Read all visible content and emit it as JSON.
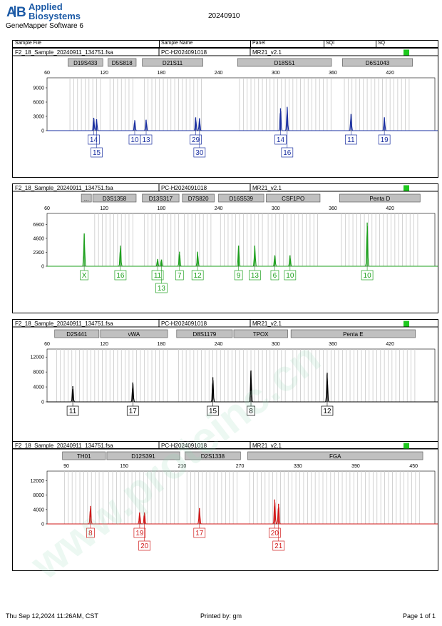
{
  "header": {
    "brand_line1": "Applied",
    "brand_line2": "Biosystems",
    "software": "GeneMapper Software 6",
    "run_date": "20240910"
  },
  "columns": [
    "Sample File",
    "Sample Name",
    "Panel",
    "SQI",
    "SQ"
  ],
  "footer": {
    "printed_at": "Thu Sep 12,2024 11:26AM, CST",
    "printed_by": "Printed by: gm",
    "page": "Page 1 of 1"
  },
  "watermark": "www.proteinc.cn",
  "colors": {
    "blue": "#1a2fa0",
    "green": "#1ea01e",
    "black": "#000000",
    "red": "#d01818",
    "status": "#1ec81e"
  },
  "chart_data": [
    {
      "type": "line",
      "sample_file": "F2_18_Sample_20240911_134751.fsa",
      "sample_name": "PC-H2024091018",
      "panel": "MR21_v2.1",
      "dye": "blue",
      "x_ticks": [
        60,
        120,
        180,
        240,
        300,
        360,
        420
      ],
      "xlim": [
        60,
        470
      ],
      "y_ticks": [
        0,
        3000,
        6000,
        9000
      ],
      "ylim": [
        0,
        10200
      ],
      "markers": [
        {
          "name": "D19S433",
          "start": 82,
          "end": 120
        },
        {
          "name": "D5S818",
          "start": 124,
          "end": 155
        },
        {
          "name": "D21S11",
          "start": 160,
          "end": 225
        },
        {
          "name": "D18S51",
          "start": 260,
          "end": 360
        },
        {
          "name": "D6S1043",
          "start": 370,
          "end": 445
        }
      ],
      "peaks": [
        {
          "x": 109,
          "y": 2700
        },
        {
          "x": 112,
          "y": 2400
        },
        {
          "x": 152,
          "y": 2200
        },
        {
          "x": 164,
          "y": 2300
        },
        {
          "x": 216,
          "y": 2800
        },
        {
          "x": 220,
          "y": 2600
        },
        {
          "x": 305,
          "y": 4700
        },
        {
          "x": 312,
          "y": 5000
        },
        {
          "x": 379,
          "y": 3500
        },
        {
          "x": 414,
          "y": 2800
        }
      ],
      "alleles": [
        {
          "x": 109,
          "label": "14",
          "row": 1
        },
        {
          "x": 112,
          "label": "15",
          "row": 2
        },
        {
          "x": 152,
          "label": "10",
          "row": 1
        },
        {
          "x": 164,
          "label": "13",
          "row": 1
        },
        {
          "x": 216,
          "label": "29",
          "row": 1
        },
        {
          "x": 220,
          "label": "30",
          "row": 2
        },
        {
          "x": 305,
          "label": "14",
          "row": 1
        },
        {
          "x": 312,
          "label": "16",
          "row": 2
        },
        {
          "x": 379,
          "label": "11",
          "row": 1
        },
        {
          "x": 414,
          "label": "19",
          "row": 1
        }
      ]
    },
    {
      "type": "line",
      "sample_file": "F2_18_Sample_20240911_134751.fsa",
      "sample_name": "PC-H2024091018",
      "panel": "MR21_v2.1",
      "dye": "green",
      "x_ticks": [
        60,
        120,
        180,
        240,
        300,
        360,
        420
      ],
      "xlim": [
        60,
        470
      ],
      "y_ticks": [
        0,
        2300,
        4600,
        6900
      ],
      "ylim": [
        0,
        8000
      ],
      "markers": [
        {
          "name": "...",
          "start": 96,
          "end": 108
        },
        {
          "name": "D3S1358",
          "start": 108,
          "end": 155
        },
        {
          "name": "D13S317",
          "start": 160,
          "end": 200
        },
        {
          "name": "D7S820",
          "start": 202,
          "end": 237
        },
        {
          "name": "D16S539",
          "start": 240,
          "end": 289
        },
        {
          "name": "CSF1PO",
          "start": 290,
          "end": 348
        },
        {
          "name": "Penta D",
          "start": 367,
          "end": 453
        }
      ],
      "peaks": [
        {
          "x": 99,
          "y": 5400
        },
        {
          "x": 137,
          "y": 3400
        },
        {
          "x": 176,
          "y": 1200
        },
        {
          "x": 180,
          "y": 1100
        },
        {
          "x": 199,
          "y": 2400
        },
        {
          "x": 218,
          "y": 2400
        },
        {
          "x": 261,
          "y": 3400
        },
        {
          "x": 278,
          "y": 3400
        },
        {
          "x": 299,
          "y": 1800
        },
        {
          "x": 315,
          "y": 1800
        },
        {
          "x": 396,
          "y": 7200
        }
      ],
      "alleles": [
        {
          "x": 99,
          "label": "X",
          "row": 1
        },
        {
          "x": 137,
          "label": "16",
          "row": 1
        },
        {
          "x": 176,
          "label": "11",
          "row": 1
        },
        {
          "x": 180,
          "label": "13",
          "row": 2
        },
        {
          "x": 199,
          "label": "7",
          "row": 1
        },
        {
          "x": 218,
          "label": "12",
          "row": 1
        },
        {
          "x": 261,
          "label": "9",
          "row": 1
        },
        {
          "x": 278,
          "label": "13",
          "row": 1
        },
        {
          "x": 299,
          "label": "6",
          "row": 1
        },
        {
          "x": 315,
          "label": "10",
          "row": 1
        },
        {
          "x": 396,
          "label": "10",
          "row": 1
        }
      ]
    },
    {
      "type": "line",
      "sample_file": "F2_18_Sample_20240911_134751.fsa",
      "sample_name": "PC-H2024091018",
      "panel": "MR21_v2.1",
      "dye": "black",
      "x_ticks": [
        60,
        120,
        180,
        240,
        300,
        360,
        420
      ],
      "xlim": [
        60,
        470
      ],
      "y_ticks": [
        0,
        4000,
        8000,
        12000
      ],
      "ylim": [
        0,
        13000
      ],
      "markers": [
        {
          "name": "D2S441",
          "start": 68,
          "end": 116
        },
        {
          "name": "vWA",
          "start": 116,
          "end": 188
        },
        {
          "name": "D8S1179",
          "start": 196,
          "end": 256
        },
        {
          "name": "TPOX",
          "start": 256,
          "end": 314
        },
        {
          "name": "Penta E",
          "start": 316,
          "end": 448
        }
      ],
      "peaks": [
        {
          "x": 87,
          "y": 4200
        },
        {
          "x": 150,
          "y": 5200
        },
        {
          "x": 234,
          "y": 6600
        },
        {
          "x": 274,
          "y": 8400
        },
        {
          "x": 354,
          "y": 7800
        }
      ],
      "alleles": [
        {
          "x": 87,
          "label": "11",
          "row": 1
        },
        {
          "x": 150,
          "label": "17",
          "row": 1
        },
        {
          "x": 234,
          "label": "15",
          "row": 1
        },
        {
          "x": 274,
          "label": "8",
          "row": 1
        },
        {
          "x": 354,
          "label": "12",
          "row": 1
        }
      ]
    },
    {
      "type": "line",
      "sample_file": "F2_18_Sample_20240911_134751.fsa",
      "sample_name": "PC-H2024091018",
      "panel": "MR21_v2.1",
      "dye": "red",
      "x_ticks": [
        90,
        150,
        210,
        270,
        330,
        390,
        450
      ],
      "xlim": [
        70,
        475
      ],
      "y_ticks": [
        0,
        4000,
        8000,
        12000
      ],
      "ylim": [
        0,
        13500
      ],
      "markers": [
        {
          "name": "TH01",
          "start": 86,
          "end": 132
        },
        {
          "name": "D12S391",
          "start": 132,
          "end": 209
        },
        {
          "name": "D2S1338",
          "start": 213,
          "end": 272
        },
        {
          "name": "FGA",
          "start": 278,
          "end": 461
        }
      ],
      "peaks": [
        {
          "x": 115,
          "y": 5000
        },
        {
          "x": 166,
          "y": 3200
        },
        {
          "x": 171,
          "y": 3200
        },
        {
          "x": 228,
          "y": 4400
        },
        {
          "x": 306,
          "y": 6800
        },
        {
          "x": 310,
          "y": 5600
        }
      ],
      "alleles": [
        {
          "x": 115,
          "label": "8",
          "row": 1
        },
        {
          "x": 166,
          "label": "19",
          "row": 1
        },
        {
          "x": 171,
          "label": "20",
          "row": 2
        },
        {
          "x": 228,
          "label": "17",
          "row": 1
        },
        {
          "x": 306,
          "label": "20",
          "row": 1
        },
        {
          "x": 310,
          "label": "21",
          "row": 2
        }
      ]
    }
  ]
}
